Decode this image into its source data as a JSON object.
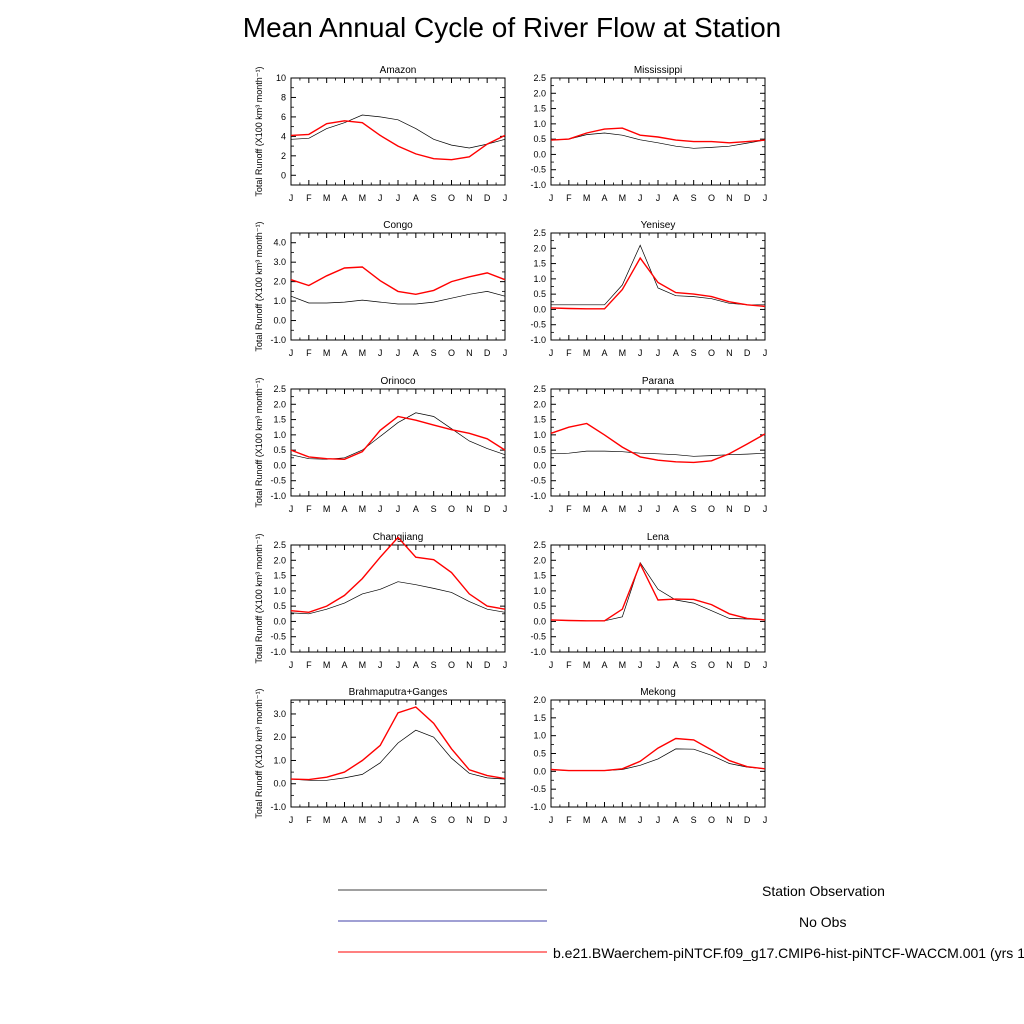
{
  "title": "Mean Annual Cycle of River Flow at Station",
  "ylabel": "Total Runoff (X100 km³ month⁻¹)",
  "months": [
    "J",
    "F",
    "M",
    "A",
    "M",
    "J",
    "J",
    "A",
    "S",
    "O",
    "N",
    "D",
    "J"
  ],
  "colors": {
    "obs": "#000000",
    "noobs": "#00008b",
    "model": "#ff0000"
  },
  "legend": {
    "obs": "Station Observation",
    "noobs": "No Obs",
    "model": "b.e21.BWaerchem-piNTCF.f09_g17.CMIP6-hist-piNTCF-WACCM.001 (yrs 1"
  },
  "chart_data": [
    {
      "type": "line",
      "name": "Amazon",
      "ylim": [
        -1,
        10
      ],
      "yticks": [
        0,
        2,
        4,
        6,
        8,
        10
      ],
      "ytick_labels": [
        "0",
        "2",
        "4",
        "6",
        "8",
        "10"
      ],
      "series": [
        {
          "name": "Station Observation",
          "values": [
            3.7,
            3.8,
            4.8,
            5.4,
            6.2,
            6.0,
            5.7,
            4.8,
            3.7,
            3.1,
            2.8,
            3.2,
            3.7
          ]
        },
        {
          "name": "b.e21.BWaerchem-piNTCF.f09_g17.CMIP6-hist-piNTCF-WACCM.001 (yrs 1",
          "values": [
            4.1,
            4.2,
            5.3,
            5.6,
            5.4,
            4.1,
            3.0,
            2.2,
            1.7,
            1.6,
            1.9,
            3.2,
            4.1
          ]
        }
      ]
    },
    {
      "type": "line",
      "name": "Mississippi",
      "ylim": [
        -1,
        2.5
      ],
      "yticks": [
        -1,
        -0.5,
        0,
        0.5,
        1,
        1.5,
        2,
        2.5
      ],
      "ytick_labels": [
        "-1.0",
        "-0.5",
        "0.0",
        "0.5",
        "1.0",
        "1.5",
        "2.0",
        "2.5"
      ],
      "series": [
        {
          "name": "Station Observation",
          "values": [
            0.47,
            0.5,
            0.65,
            0.7,
            0.63,
            0.48,
            0.38,
            0.27,
            0.2,
            0.23,
            0.27,
            0.37,
            0.47
          ]
        },
        {
          "name": "b.e21.BWaerchem-piNTCF.f09_g17.CMIP6-hist-piNTCF-WACCM.001 (yrs 1",
          "values": [
            0.47,
            0.5,
            0.7,
            0.83,
            0.86,
            0.63,
            0.57,
            0.47,
            0.42,
            0.42,
            0.38,
            0.42,
            0.47
          ]
        }
      ]
    },
    {
      "type": "line",
      "name": "Congo",
      "ylim": [
        -1,
        4.5
      ],
      "yticks": [
        -1,
        0,
        1,
        2,
        3,
        4
      ],
      "ytick_labels": [
        "-1.0",
        "0.0",
        "1.0",
        "2.0",
        "3.0",
        "4.0"
      ],
      "series": [
        {
          "name": "Station Observation",
          "values": [
            1.25,
            0.9,
            0.9,
            0.95,
            1.05,
            0.95,
            0.85,
            0.85,
            0.95,
            1.15,
            1.35,
            1.5,
            1.25
          ]
        },
        {
          "name": "b.e21.BWaerchem-piNTCF.f09_g17.CMIP6-hist-piNTCF-WACCM.001 (yrs 1",
          "values": [
            2.1,
            1.8,
            2.3,
            2.7,
            2.75,
            2.05,
            1.5,
            1.35,
            1.55,
            2.0,
            2.25,
            2.45,
            2.1
          ]
        }
      ]
    },
    {
      "type": "line",
      "name": "Yenisey",
      "ylim": [
        -1,
        2.5
      ],
      "yticks": [
        -1,
        -0.5,
        0,
        0.5,
        1,
        1.5,
        2,
        2.5
      ],
      "ytick_labels": [
        "-1.0",
        "-0.5",
        "0.0",
        "0.5",
        "1.0",
        "1.5",
        "2.0",
        "2.5"
      ],
      "series": [
        {
          "name": "Station Observation",
          "values": [
            0.15,
            0.15,
            0.15,
            0.15,
            0.8,
            2.1,
            0.7,
            0.45,
            0.42,
            0.35,
            0.2,
            0.15,
            0.15
          ]
        },
        {
          "name": "b.e21.BWaerchem-piNTCF.f09_g17.CMIP6-hist-piNTCF-WACCM.001 (yrs 1",
          "values": [
            0.05,
            0.03,
            0.02,
            0.02,
            0.65,
            1.68,
            0.88,
            0.55,
            0.5,
            0.42,
            0.25,
            0.15,
            0.1
          ]
        }
      ]
    },
    {
      "type": "line",
      "name": "Orinoco",
      "ylim": [
        -1,
        2.5
      ],
      "yticks": [
        -1,
        -0.5,
        0,
        0.5,
        1,
        1.5,
        2,
        2.5
      ],
      "ytick_labels": [
        "-1.0",
        "-0.5",
        "0.0",
        "0.5",
        "1.0",
        "1.5",
        "2.0",
        "2.5"
      ],
      "series": [
        {
          "name": "Station Observation",
          "values": [
            0.35,
            0.22,
            0.2,
            0.25,
            0.5,
            0.95,
            1.4,
            1.72,
            1.6,
            1.2,
            0.8,
            0.55,
            0.35
          ]
        },
        {
          "name": "b.e21.BWaerchem-piNTCF.f09_g17.CMIP6-hist-piNTCF-WACCM.001 (yrs 1",
          "values": [
            0.5,
            0.28,
            0.22,
            0.2,
            0.45,
            1.15,
            1.6,
            1.48,
            1.32,
            1.17,
            1.05,
            0.87,
            0.5
          ]
        }
      ]
    },
    {
      "type": "line",
      "name": "Parana",
      "ylim": [
        -1,
        2.5
      ],
      "yticks": [
        -1,
        -0.5,
        0,
        0.5,
        1,
        1.5,
        2,
        2.5
      ],
      "ytick_labels": [
        "-1.0",
        "-0.5",
        "0.0",
        "0.5",
        "1.0",
        "1.5",
        "2.0",
        "2.5"
      ],
      "series": [
        {
          "name": "Station Observation",
          "values": [
            0.38,
            0.4,
            0.47,
            0.47,
            0.45,
            0.4,
            0.38,
            0.35,
            0.3,
            0.32,
            0.35,
            0.37,
            0.4
          ]
        },
        {
          "name": "b.e21.BWaerchem-piNTCF.f09_g17.CMIP6-hist-piNTCF-WACCM.001 (yrs 1",
          "values": [
            1.05,
            1.25,
            1.37,
            1.0,
            0.6,
            0.28,
            0.17,
            0.12,
            0.1,
            0.15,
            0.38,
            0.7,
            1.03
          ]
        }
      ]
    },
    {
      "type": "line",
      "name": "Changjiang",
      "ylim": [
        -1,
        2.5
      ],
      "yticks": [
        -1,
        -0.5,
        0,
        0.5,
        1,
        1.5,
        2,
        2.5
      ],
      "ytick_labels": [
        "-1.0",
        "-0.5",
        "0.0",
        "0.5",
        "1.0",
        "1.5",
        "2.0",
        "2.5"
      ],
      "series": [
        {
          "name": "Station Observation",
          "values": [
            0.28,
            0.25,
            0.4,
            0.6,
            0.9,
            1.05,
            1.3,
            1.2,
            1.08,
            0.95,
            0.65,
            0.4,
            0.3
          ]
        },
        {
          "name": "b.e21.BWaerchem-piNTCF.f09_g17.CMIP6-hist-piNTCF-WACCM.001 (yrs 1",
          "values": [
            0.35,
            0.3,
            0.5,
            0.85,
            1.4,
            2.1,
            2.75,
            2.1,
            2.02,
            1.6,
            0.9,
            0.5,
            0.4
          ]
        }
      ]
    },
    {
      "type": "line",
      "name": "Lena",
      "ylim": [
        -1,
        2.5
      ],
      "yticks": [
        -1,
        -0.5,
        0,
        0.5,
        1,
        1.5,
        2,
        2.5
      ],
      "ytick_labels": [
        "-1.0",
        "-0.5",
        "0.0",
        "0.5",
        "1.0",
        "1.5",
        "2.0",
        "2.5"
      ],
      "series": [
        {
          "name": "Station Observation",
          "values": [
            0.05,
            0.03,
            0.02,
            0.02,
            0.15,
            1.92,
            1.05,
            0.7,
            0.6,
            0.35,
            0.1,
            0.08,
            0.05
          ]
        },
        {
          "name": "b.e21.BWaerchem-piNTCF.f09_g17.CMIP6-hist-piNTCF-WACCM.001 (yrs 1",
          "values": [
            0.05,
            0.03,
            0.02,
            0.02,
            0.4,
            1.88,
            0.7,
            0.73,
            0.72,
            0.55,
            0.25,
            0.1,
            0.05
          ]
        }
      ]
    },
    {
      "type": "line",
      "name": "Brahmaputra+Ganges",
      "ylim": [
        -1,
        3.6
      ],
      "yticks": [
        -1,
        0,
        1,
        2,
        3
      ],
      "ytick_labels": [
        "-1.0",
        "0.0",
        "1.0",
        "2.0",
        "3.0"
      ],
      "series": [
        {
          "name": "Station Observation",
          "values": [
            0.2,
            0.15,
            0.15,
            0.25,
            0.4,
            0.9,
            1.75,
            2.3,
            2.0,
            1.1,
            0.45,
            0.25,
            0.2
          ]
        },
        {
          "name": "b.e21.BWaerchem-piNTCF.f09_g17.CMIP6-hist-piNTCF-WACCM.001 (yrs 1",
          "values": [
            0.2,
            0.18,
            0.28,
            0.5,
            1.0,
            1.65,
            3.05,
            3.3,
            2.6,
            1.5,
            0.6,
            0.35,
            0.22
          ]
        }
      ]
    },
    {
      "type": "line",
      "name": "Mekong",
      "ylim": [
        -1,
        2
      ],
      "yticks": [
        -1,
        -0.5,
        0,
        0.5,
        1,
        1.5,
        2
      ],
      "ytick_labels": [
        "-1.0",
        "-0.5",
        "0.0",
        "0.5",
        "1.0",
        "1.5",
        "2.0"
      ],
      "series": [
        {
          "name": "Station Observation",
          "values": [
            0.05,
            0.02,
            0.02,
            0.02,
            0.05,
            0.17,
            0.35,
            0.63,
            0.62,
            0.45,
            0.22,
            0.12,
            0.07
          ]
        },
        {
          "name": "b.e21.BWaerchem-piNTCF.f09_g17.CMIP6-hist-piNTCF-WACCM.001 (yrs 1",
          "values": [
            0.05,
            0.02,
            0.02,
            0.02,
            0.07,
            0.28,
            0.65,
            0.92,
            0.88,
            0.6,
            0.3,
            0.13,
            0.07
          ]
        }
      ]
    }
  ]
}
